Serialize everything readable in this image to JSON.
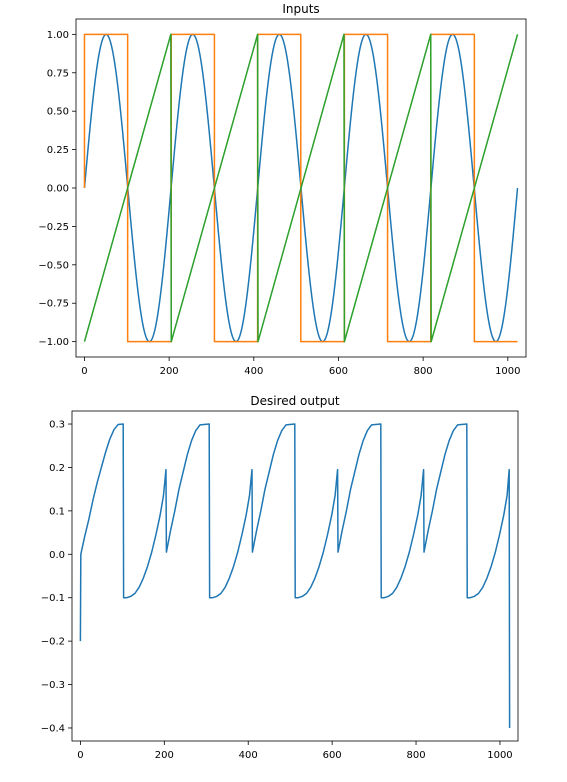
{
  "chart_data": [
    {
      "type": "line",
      "title": "Inputs",
      "xlabel": "",
      "ylabel": "",
      "xlim": [
        -20,
        1043
      ],
      "ylim": [
        -1.1,
        1.1
      ],
      "xticks": [
        0,
        200,
        400,
        600,
        800,
        1000
      ],
      "xtick_labels": [
        "0",
        "200",
        "400",
        "600",
        "800",
        "1000"
      ],
      "yticks": [
        1.0,
        0.75,
        0.5,
        0.25,
        0.0,
        -0.25,
        -0.5,
        -0.75,
        -1.0
      ],
      "ytick_labels": [
        "1.00",
        "0.75",
        "0.50",
        "0.25",
        "0.00",
        "−0.25",
        "−0.50",
        "−0.75",
        "−1.00"
      ],
      "grid": false,
      "series": [
        {
          "kind": "sine",
          "color": "#1f77b4",
          "period": 204.6,
          "amplitude": 1.0,
          "x_range": [
            0,
            1023
          ],
          "points": [
            [
              0,
              0
            ],
            [
              51,
              1.0
            ],
            [
              102,
              0
            ],
            [
              153,
              -1.0
            ],
            [
              205,
              0
            ],
            [
              256,
              1.0
            ],
            [
              307,
              0
            ],
            [
              358,
              -1.0
            ],
            [
              409,
              0
            ],
            [
              460,
              1.0
            ],
            [
              511,
              0
            ],
            [
              562,
              -1.0
            ],
            [
              614,
              0
            ],
            [
              665,
              1.0
            ],
            [
              716,
              0
            ],
            [
              767,
              -1.0
            ],
            [
              818,
              0
            ],
            [
              869,
              1.0
            ],
            [
              921,
              0
            ],
            [
              972,
              -1.0
            ],
            [
              1023,
              0
            ]
          ]
        },
        {
          "kind": "square",
          "color": "#ff7f0e",
          "points": [
            [
              0,
              0
            ],
            [
              0,
              1.0
            ],
            [
              102,
              1.0
            ],
            [
              102,
              -1.0
            ],
            [
              205,
              -1.0
            ],
            [
              205,
              1.0
            ],
            [
              307,
              1.0
            ],
            [
              307,
              -1.0
            ],
            [
              409,
              -1.0
            ],
            [
              409,
              1.0
            ],
            [
              511,
              1.0
            ],
            [
              511,
              -1.0
            ],
            [
              614,
              -1.0
            ],
            [
              614,
              1.0
            ],
            [
              716,
              1.0
            ],
            [
              716,
              -1.0
            ],
            [
              818,
              -1.0
            ],
            [
              818,
              1.0
            ],
            [
              921,
              1.0
            ],
            [
              921,
              -1.0
            ],
            [
              1023,
              -1.0
            ]
          ]
        },
        {
          "kind": "sawtooth",
          "color": "#2ca02c",
          "points": [
            [
              0,
              -1.0
            ],
            [
              204,
              1.0
            ],
            [
              205,
              -1.0
            ],
            [
              409,
              1.0
            ],
            [
              410,
              -1.0
            ],
            [
              613,
              1.0
            ],
            [
              614,
              -1.0
            ],
            [
              818,
              1.0
            ],
            [
              819,
              -1.0
            ],
            [
              1023,
              1.0
            ]
          ]
        }
      ]
    },
    {
      "type": "line",
      "title": "Desired output",
      "xlabel": "",
      "ylabel": "",
      "xlim": [
        -20,
        1043
      ],
      "ylim": [
        -0.43,
        0.33
      ],
      "xticks": [
        0,
        200,
        400,
        600,
        800,
        1000
      ],
      "xtick_labels": [
        "0",
        "200",
        "400",
        "600",
        "800",
        "1000"
      ],
      "yticks": [
        0.3,
        0.2,
        0.1,
        0.0,
        -0.1,
        -0.2,
        -0.3,
        -0.4
      ],
      "ytick_labels": [
        "0.3",
        "0.2",
        "0.1",
        "0.0",
        "−0.1",
        "−0.2",
        "−0.3",
        "−0.4"
      ],
      "grid": false,
      "series": [
        {
          "color": "#1f77b4",
          "points": [
            [
              0,
              -0.2
            ],
            [
              1,
              0.0
            ],
            [
              10,
              0.04
            ],
            [
              20,
              0.08
            ],
            [
              30,
              0.125
            ],
            [
              40,
              0.165
            ],
            [
              50,
              0.2
            ],
            [
              60,
              0.235
            ],
            [
              70,
              0.265
            ],
            [
              80,
              0.287
            ],
            [
              90,
              0.299
            ],
            [
              102,
              0.3
            ],
            [
              103,
              -0.1
            ],
            [
              110,
              -0.1
            ],
            [
              120,
              -0.097
            ],
            [
              130,
              -0.09
            ],
            [
              140,
              -0.076
            ],
            [
              150,
              -0.055
            ],
            [
              160,
              -0.028
            ],
            [
              170,
              0.005
            ],
            [
              180,
              0.045
            ],
            [
              190,
              0.09
            ],
            [
              198,
              0.135
            ],
            [
              204,
              0.195
            ],
            [
              205,
              0.005
            ],
            [
              215,
              0.055
            ],
            [
              225,
              0.1
            ],
            [
              235,
              0.15
            ],
            [
              245,
              0.19
            ],
            [
              255,
              0.23
            ],
            [
              265,
              0.262
            ],
            [
              275,
              0.285
            ],
            [
              285,
              0.298
            ],
            [
              307,
              0.3
            ],
            [
              308,
              -0.1
            ],
            [
              315,
              -0.1
            ],
            [
              325,
              -0.097
            ],
            [
              335,
              -0.09
            ],
            [
              345,
              -0.076
            ],
            [
              355,
              -0.055
            ],
            [
              365,
              -0.028
            ],
            [
              375,
              0.005
            ],
            [
              385,
              0.045
            ],
            [
              395,
              0.09
            ],
            [
              403,
              0.135
            ],
            [
              409,
              0.195
            ],
            [
              410,
              0.005
            ],
            [
              420,
              0.055
            ],
            [
              430,
              0.1
            ],
            [
              440,
              0.15
            ],
            [
              450,
              0.19
            ],
            [
              460,
              0.23
            ],
            [
              470,
              0.262
            ],
            [
              480,
              0.285
            ],
            [
              490,
              0.298
            ],
            [
              511,
              0.3
            ],
            [
              512,
              -0.1
            ],
            [
              519,
              -0.1
            ],
            [
              529,
              -0.097
            ],
            [
              539,
              -0.09
            ],
            [
              549,
              -0.076
            ],
            [
              559,
              -0.055
            ],
            [
              569,
              -0.028
            ],
            [
              579,
              0.005
            ],
            [
              589,
              0.045
            ],
            [
              599,
              0.09
            ],
            [
              607,
              0.135
            ],
            [
              613,
              0.195
            ],
            [
              614,
              0.005
            ],
            [
              624,
              0.055
            ],
            [
              634,
              0.1
            ],
            [
              644,
              0.15
            ],
            [
              654,
              0.19
            ],
            [
              664,
              0.23
            ],
            [
              674,
              0.262
            ],
            [
              684,
              0.285
            ],
            [
              694,
              0.298
            ],
            [
              716,
              0.3
            ],
            [
              717,
              -0.1
            ],
            [
              724,
              -0.1
            ],
            [
              734,
              -0.097
            ],
            [
              744,
              -0.09
            ],
            [
              754,
              -0.076
            ],
            [
              764,
              -0.055
            ],
            [
              774,
              -0.028
            ],
            [
              784,
              0.005
            ],
            [
              794,
              0.045
            ],
            [
              804,
              0.09
            ],
            [
              812,
              0.135
            ],
            [
              818,
              0.195
            ],
            [
              819,
              0.005
            ],
            [
              829,
              0.055
            ],
            [
              839,
              0.1
            ],
            [
              849,
              0.15
            ],
            [
              859,
              0.19
            ],
            [
              869,
              0.23
            ],
            [
              879,
              0.262
            ],
            [
              889,
              0.285
            ],
            [
              899,
              0.298
            ],
            [
              921,
              0.3
            ],
            [
              922,
              -0.1
            ],
            [
              929,
              -0.1
            ],
            [
              939,
              -0.097
            ],
            [
              949,
              -0.09
            ],
            [
              959,
              -0.076
            ],
            [
              969,
              -0.055
            ],
            [
              979,
              -0.028
            ],
            [
              989,
              0.005
            ],
            [
              999,
              0.045
            ],
            [
              1009,
              0.09
            ],
            [
              1017,
              0.135
            ],
            [
              1022,
              0.195
            ],
            [
              1023,
              -0.4
            ]
          ]
        }
      ]
    }
  ]
}
